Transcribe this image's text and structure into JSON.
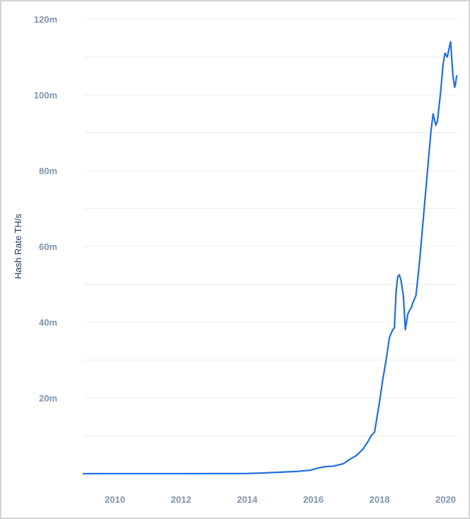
{
  "chart_data": {
    "type": "line",
    "title": "",
    "xlabel": "",
    "ylabel": "Hash Rate TH/s",
    "xlim": [
      2009.05,
      2020.35
    ],
    "ylim": [
      0,
      120
    ],
    "grid": true,
    "x_ticks": [
      {
        "value": 2010,
        "label": "2010"
      },
      {
        "value": 2012,
        "label": "2012"
      },
      {
        "value": 2014,
        "label": "2014"
      },
      {
        "value": 2016,
        "label": "2016"
      },
      {
        "value": 2018,
        "label": "2018"
      },
      {
        "value": 2020,
        "label": "2020"
      }
    ],
    "y_ticks": [
      {
        "value": 20,
        "label": "20m"
      },
      {
        "value": 40,
        "label": "40m"
      },
      {
        "value": 60,
        "label": "60m"
      },
      {
        "value": 80,
        "label": "80m"
      },
      {
        "value": 100,
        "label": "100m"
      },
      {
        "value": 120,
        "label": "120m"
      }
    ],
    "y_gridlines": [
      10,
      20,
      30,
      40,
      50,
      60,
      70,
      80,
      90,
      100,
      110,
      120
    ],
    "series": [
      {
        "color": "#1f6fe0",
        "x": [
          2009.05,
          2012.0,
          2014.0,
          2014.5,
          2015.0,
          2015.5,
          2015.9,
          2016.1,
          2016.3,
          2016.6,
          2016.9,
          2017.1,
          2017.3,
          2017.5,
          2017.6,
          2017.75,
          2017.85,
          2018.0,
          2018.1,
          2018.2,
          2018.3,
          2018.4,
          2018.45,
          2018.5,
          2018.55,
          2018.6,
          2018.65,
          2018.72,
          2018.78,
          2018.85,
          2018.9,
          2018.97,
          2019.0,
          2019.1,
          2019.2,
          2019.3,
          2019.38,
          2019.45,
          2019.55,
          2019.62,
          2019.7,
          2019.75,
          2019.8,
          2019.85,
          2019.92,
          2019.98,
          2020.05,
          2020.12,
          2020.15,
          2020.18,
          2020.22,
          2020.27,
          2020.3,
          2020.33
        ],
        "y": [
          0.01,
          0.01,
          0.05,
          0.2,
          0.4,
          0.6,
          0.9,
          1.4,
          1.8,
          2.0,
          2.6,
          3.8,
          4.8,
          6.5,
          7.8,
          10,
          11,
          19,
          25,
          30,
          36,
          38,
          38.5,
          48,
          52,
          52.5,
          51,
          47,
          38,
          42,
          43,
          44,
          45,
          47,
          55,
          65,
          73,
          80,
          90,
          95,
          92,
          93,
          97,
          101,
          108,
          111,
          110,
          113,
          114,
          110,
          105,
          102,
          103,
          105
        ]
      }
    ]
  }
}
